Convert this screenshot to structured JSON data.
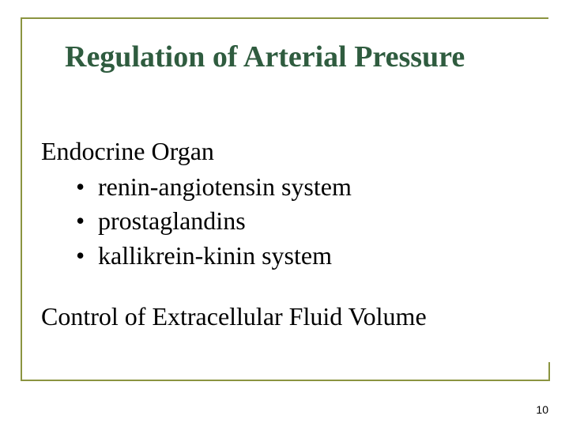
{
  "title": "Regulation of Arterial Pressure",
  "section1": {
    "heading": "Endocrine Organ",
    "bullets": [
      "renin-angiotensin system",
      "prostaglandins",
      "kallikrein-kinin system"
    ]
  },
  "section2": "Control of Extracellular Fluid Volume",
  "pageNumber": "10",
  "colors": {
    "frameBorder": "#8b9440",
    "titleColor": "#2f5c3f",
    "textColor": "#000000",
    "background": "#ffffff"
  },
  "typography": {
    "titleFontSize": 38,
    "bodyFontSize": 32,
    "pageNumFontSize": 14,
    "fontFamily": "Times New Roman"
  }
}
